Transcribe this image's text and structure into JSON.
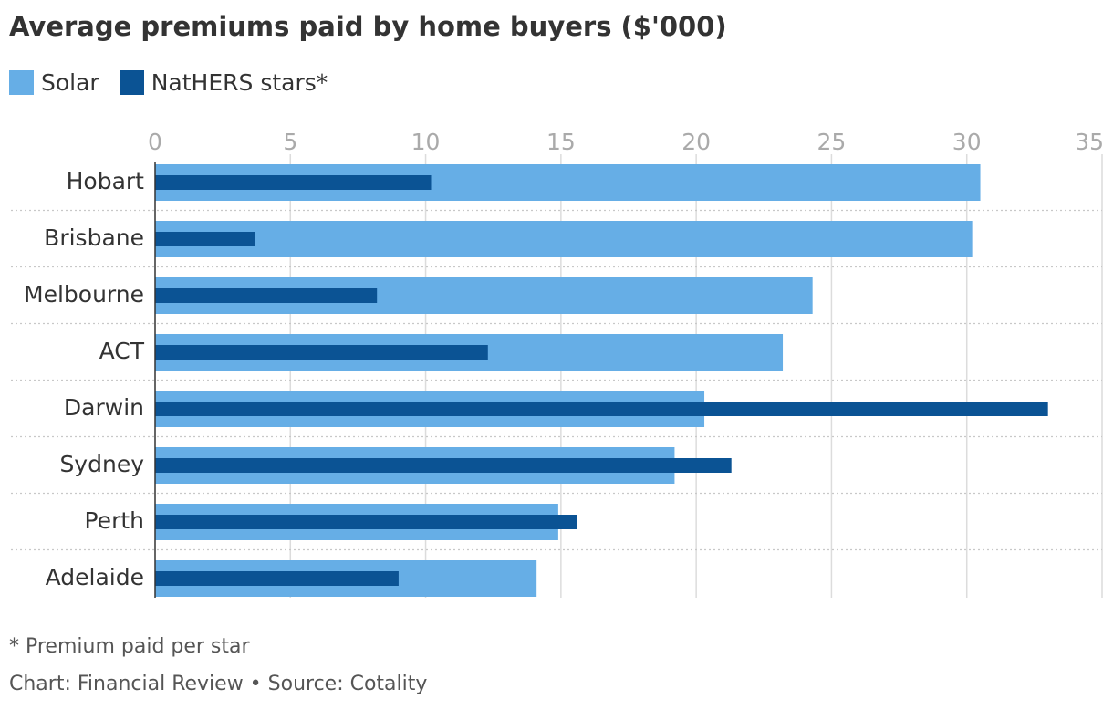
{
  "chart_data": {
    "type": "bar",
    "orientation": "horizontal",
    "title": "Average premiums paid by home buyers ($'000)",
    "categories": [
      "Hobart",
      "Brisbane",
      "Melbourne",
      "ACT",
      "Darwin",
      "Sydney",
      "Perth",
      "Adelaide"
    ],
    "series": [
      {
        "name": "Solar",
        "color": "#66aee6",
        "values": [
          30.5,
          30.2,
          24.3,
          23.2,
          20.3,
          19.2,
          14.9,
          14.1
        ]
      },
      {
        "name": "NatHERS stars*",
        "color": "#0b5394",
        "values": [
          10.2,
          3.7,
          8.2,
          12.3,
          33.0,
          21.3,
          15.6,
          9.0
        ]
      }
    ],
    "xlim": [
      0,
      35
    ],
    "xticks": [
      "0",
      "5",
      "10",
      "15",
      "20",
      "25",
      "30",
      "35"
    ],
    "grid": true,
    "legend_position": "top-left",
    "footnote": "* Premium paid per star",
    "credit": "Chart: Financial Review • Source: Cotality"
  }
}
